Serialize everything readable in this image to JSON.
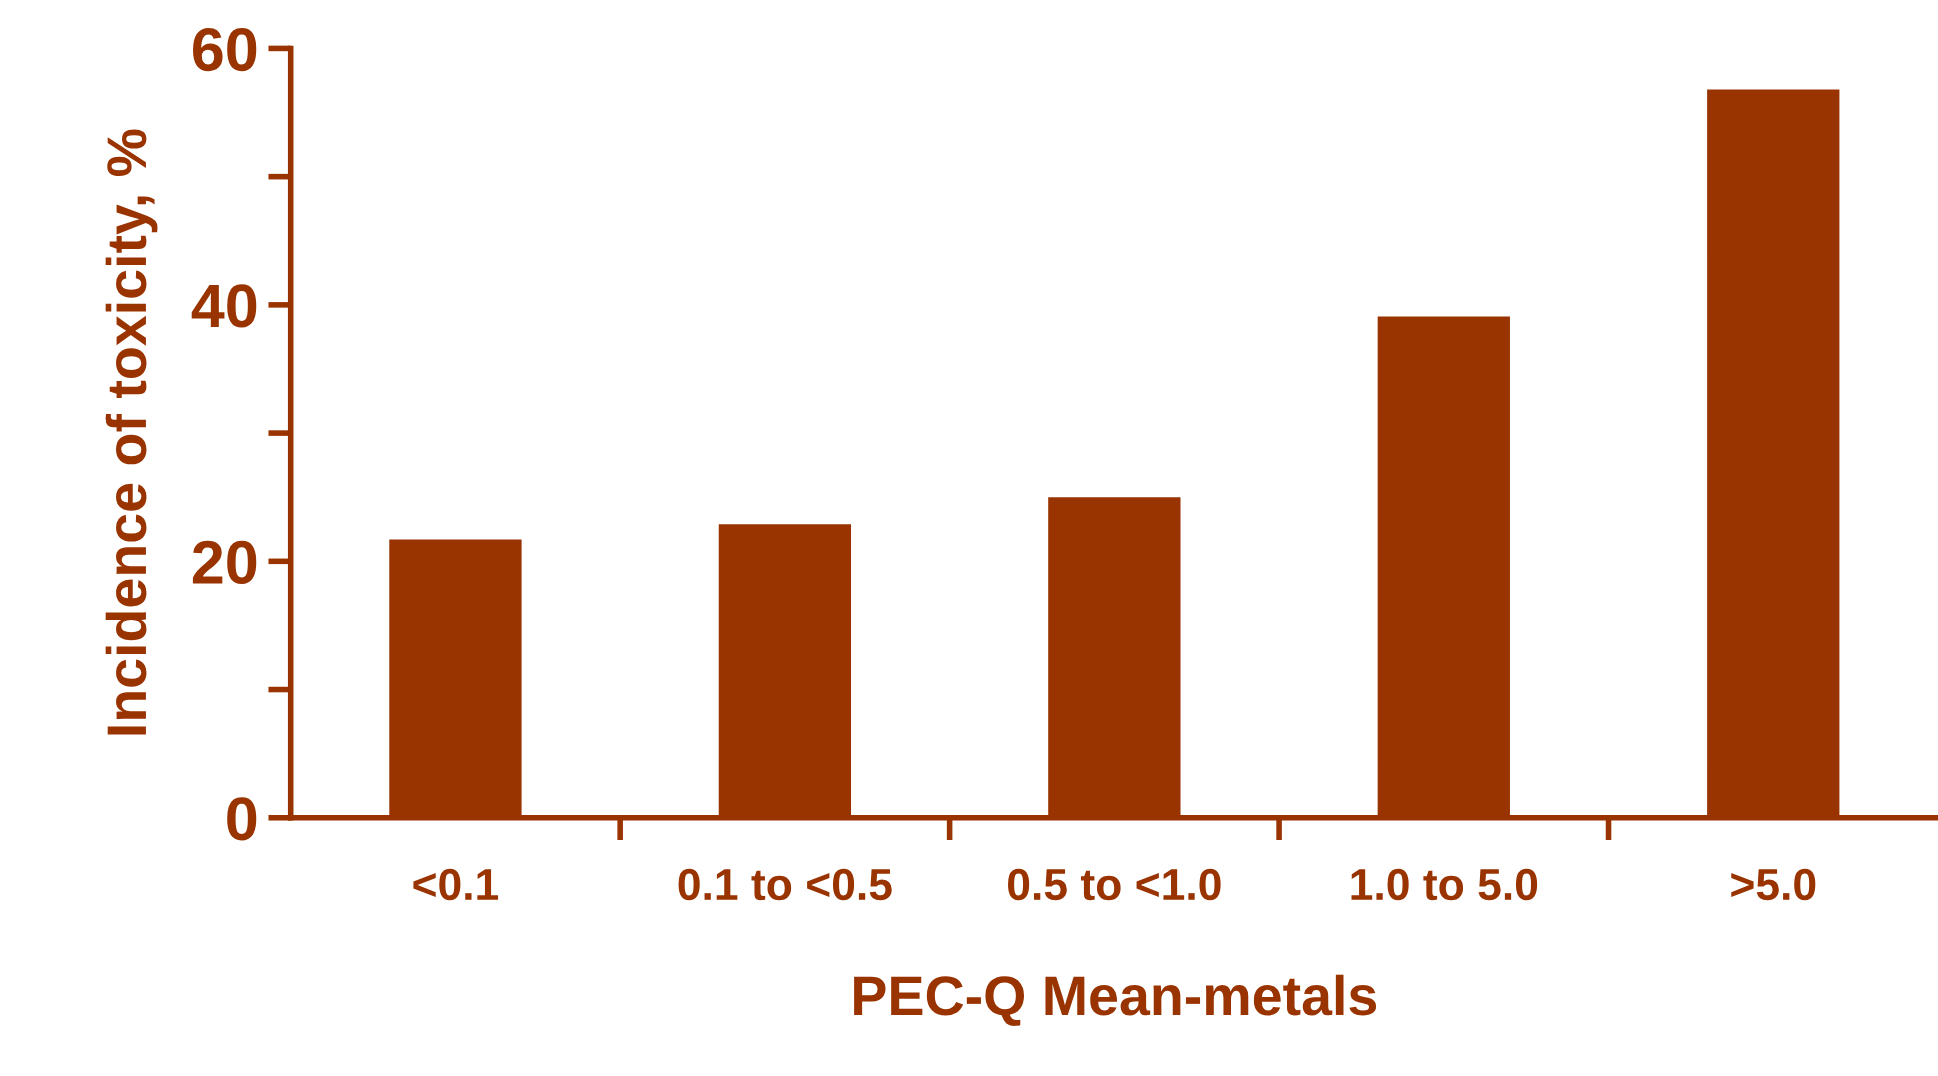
{
  "chart_data": {
    "type": "bar",
    "xlabel": "PEC-Q Mean-metals",
    "ylabel": "Incidence of toxicity, %",
    "categories": [
      "<0.1",
      "0.1 to <0.5",
      "0.5 to <1.0",
      "1.0 to 5.0",
      ">5.0"
    ],
    "values": [
      21.8,
      23.0,
      25.1,
      39.2,
      56.9
    ],
    "color": "#993300",
    "ylim": [
      0,
      60
    ],
    "yticks": [
      0,
      {
        "value": 10,
        "label": null
      },
      20,
      {
        "value": 30,
        "label": null
      },
      40,
      {
        "value": 50,
        "label": null
      },
      60
    ],
    "grid": false
  }
}
